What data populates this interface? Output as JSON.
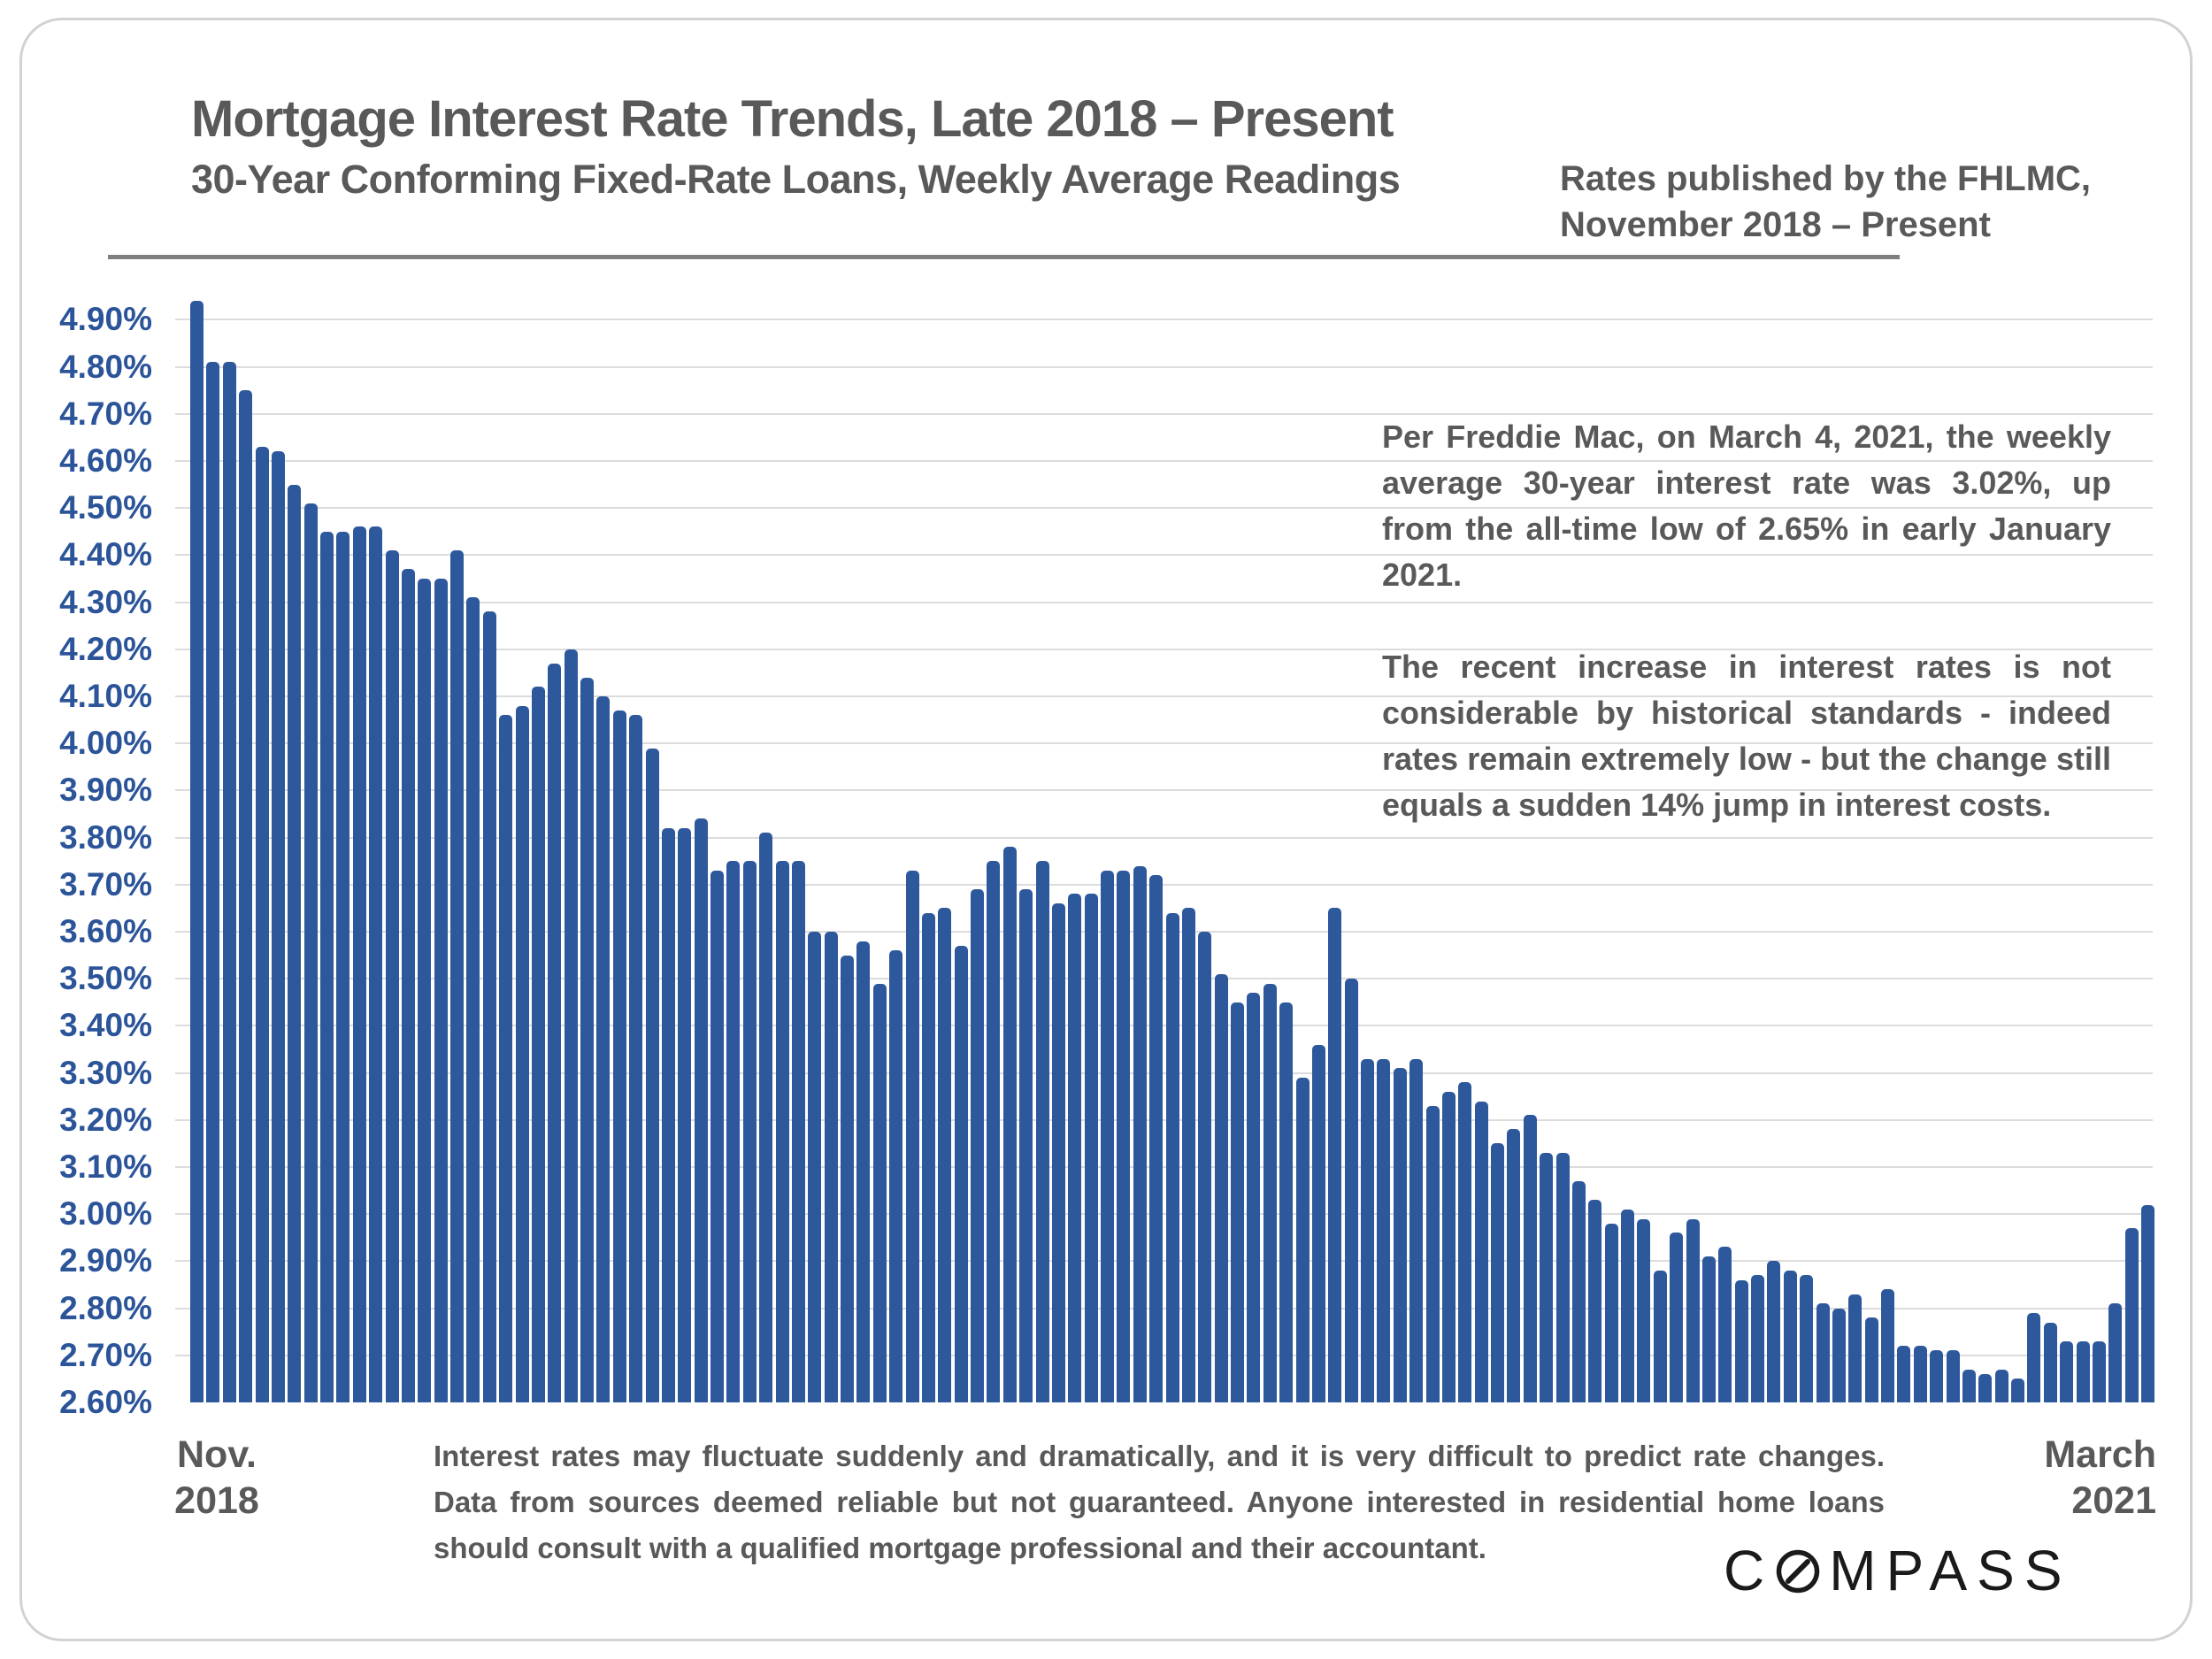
{
  "header": {
    "title": "Mortgage Interest Rate Trends, Late 2018 – Present",
    "subtitle": "30-Year Conforming Fixed-Rate Loans, Weekly Average Readings",
    "source_note_line1": "Rates published by the FHLMC,",
    "source_note_line2": "November 2018 – Present"
  },
  "chart_data": {
    "type": "bar",
    "title": "Mortgage Interest Rate Trends, Late 2018 – Present",
    "xlabel": "",
    "ylabel": "",
    "ylim": [
      2.6,
      4.95
    ],
    "grid": "horizontal",
    "bar_color": "#2e589c",
    "x_start_label": {
      "line1": "Nov.",
      "line2": "2018"
    },
    "x_end_label": {
      "line1": "March",
      "line2": "2021"
    },
    "y_tick_labels": [
      "4.90%",
      "4.80%",
      "4.70%",
      "4.60%",
      "4.50%",
      "4.40%",
      "4.30%",
      "4.20%",
      "4.10%",
      "4.00%",
      "3.90%",
      "3.80%",
      "3.70%",
      "3.60%",
      "3.50%",
      "3.40%",
      "3.30%",
      "3.20%",
      "3.10%",
      "3.00%",
      "2.90%",
      "2.80%",
      "2.70%",
      "2.60%"
    ],
    "y_tick_values": [
      4.9,
      4.8,
      4.7,
      4.6,
      4.5,
      4.4,
      4.3,
      4.2,
      4.1,
      4.0,
      3.9,
      3.8,
      3.7,
      3.6,
      3.5,
      3.4,
      3.3,
      3.2,
      3.1,
      3.0,
      2.9,
      2.8,
      2.7,
      2.6
    ],
    "series_name": "30-Year Fixed Rate, Weekly Average",
    "values": [
      4.94,
      4.81,
      4.81,
      4.75,
      4.63,
      4.62,
      4.55,
      4.51,
      4.45,
      4.45,
      4.46,
      4.46,
      4.41,
      4.37,
      4.35,
      4.35,
      4.41,
      4.31,
      4.28,
      4.06,
      4.08,
      4.12,
      4.17,
      4.2,
      4.14,
      4.1,
      4.07,
      4.06,
      3.99,
      3.82,
      3.82,
      3.84,
      3.73,
      3.75,
      3.75,
      3.81,
      3.75,
      3.75,
      3.6,
      3.6,
      3.55,
      3.58,
      3.49,
      3.56,
      3.73,
      3.64,
      3.65,
      3.57,
      3.69,
      3.75,
      3.78,
      3.69,
      3.75,
      3.66,
      3.68,
      3.68,
      3.73,
      3.73,
      3.74,
      3.72,
      3.64,
      3.65,
      3.6,
      3.51,
      3.45,
      3.47,
      3.49,
      3.45,
      3.29,
      3.36,
      3.65,
      3.5,
      3.33,
      3.33,
      3.31,
      3.33,
      3.23,
      3.26,
      3.28,
      3.24,
      3.15,
      3.18,
      3.21,
      3.13,
      3.13,
      3.07,
      3.03,
      2.98,
      3.01,
      2.99,
      2.88,
      2.96,
      2.99,
      2.91,
      2.93,
      2.86,
      2.87,
      2.9,
      2.88,
      2.87,
      2.81,
      2.8,
      2.83,
      2.78,
      2.84,
      2.72,
      2.72,
      2.71,
      2.71,
      2.67,
      2.66,
      2.67,
      2.65,
      2.79,
      2.77,
      2.73,
      2.73,
      2.73,
      2.81,
      2.97,
      3.02
    ]
  },
  "annotation": {
    "para1": "Per Freddie Mac, on March 4, 2021, the weekly average 30-year interest rate was 3.02%, up from the all-time low of 2.65% in early January 2021.",
    "para2": "The recent increase in interest rates is not considerable by historical standards - indeed rates remain extremely low - but the change still equals a sudden 14% jump in interest costs."
  },
  "disclaimer": "Interest rates may fluctuate suddenly and dramatically, and it is very difficult to predict rate changes. Data from sources deemed reliable but not guaranteed. Anyone interested in residential home loans should consult with a qualified mortgage professional and their accountant.",
  "logo": {
    "prefix": "C",
    "suffix": "MPASS"
  }
}
